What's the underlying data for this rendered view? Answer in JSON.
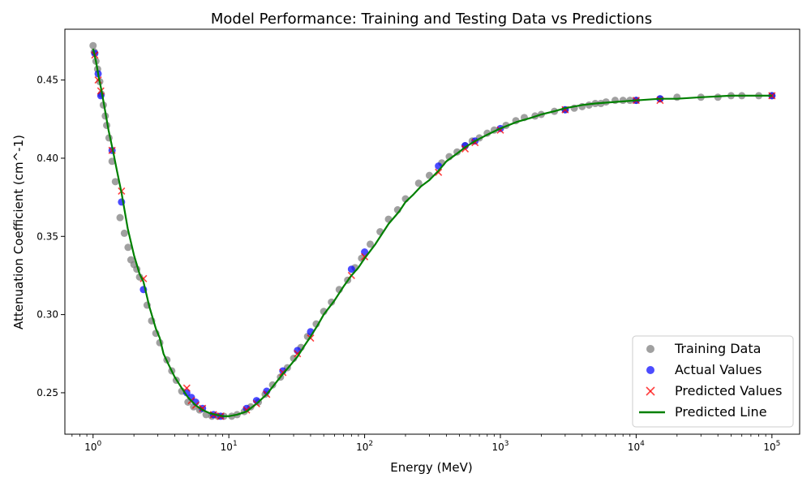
{
  "chart_data": {
    "type": "scatter",
    "title": "Model Performance: Training and Testing Data vs Predictions",
    "xlabel": "Energy (MeV)",
    "ylabel": "Attenuation Coefficient (cm^-1)",
    "xscale": "log",
    "xlim": [
      0.62,
      160000
    ],
    "ylim": [
      0.2235,
      0.4825
    ],
    "x_ticks": [
      {
        "value": 1,
        "base": "10",
        "exp": "0"
      },
      {
        "value": 10,
        "base": "10",
        "exp": "1"
      },
      {
        "value": 100,
        "base": "10",
        "exp": "2"
      },
      {
        "value": 1000,
        "base": "10",
        "exp": "3"
      },
      {
        "value": 10000,
        "base": "10",
        "exp": "4"
      },
      {
        "value": 100000,
        "base": "10",
        "exp": "5"
      }
    ],
    "y_ticks": [
      "0.25",
      "0.30",
      "0.35",
      "0.40",
      "0.45"
    ],
    "grid": false,
    "legend_position": "bottom-right",
    "colors": {
      "training": "#808080",
      "actual": "#0000ff",
      "predicted": "#ff0000",
      "line": "#008000"
    },
    "series": [
      {
        "name": "Training Data",
        "kind": "scatter-circle",
        "x": [
          1.0,
          1.02,
          1.05,
          1.08,
          1.12,
          1.15,
          1.19,
          1.23,
          1.26,
          1.31,
          1.38,
          1.46,
          1.58,
          1.7,
          1.81,
          1.9,
          2.0,
          2.1,
          2.2,
          2.5,
          2.7,
          2.9,
          3.1,
          3.5,
          3.8,
          4.1,
          4.5,
          5.0,
          5.5,
          6.1,
          6.8,
          7.5,
          8.3,
          9.2,
          10.5,
          11.5,
          13.0,
          14.5,
          16.5,
          18.5,
          21.0,
          24.0,
          27.0,
          30.0,
          34.0,
          38.0,
          44.0,
          50.0,
          57.0,
          65.0,
          75.0,
          85.0,
          95.0,
          110.0,
          130.0,
          150.0,
          175.0,
          200.0,
          250.0,
          300.0,
          370.0,
          420.0,
          480.0,
          550.0,
          620.0,
          700.0,
          800.0,
          900.0,
          1100.0,
          1300.0,
          1500.0,
          1800.0,
          2000.0,
          2500.0,
          3000.0,
          3500.0,
          4000.0,
          4500.0,
          5000.0,
          5500.0,
          6000.0,
          7000.0,
          8000.0,
          9000.0,
          10000.0,
          15000.0,
          20000.0,
          30000.0,
          40000.0,
          50000.0,
          60000.0,
          80000.0,
          100000.0
        ],
        "y": [
          0.472,
          0.468,
          0.462,
          0.457,
          0.449,
          0.441,
          0.434,
          0.427,
          0.421,
          0.413,
          0.398,
          0.385,
          0.362,
          0.352,
          0.343,
          0.335,
          0.332,
          0.329,
          0.324,
          0.306,
          0.296,
          0.288,
          0.282,
          0.271,
          0.264,
          0.258,
          0.251,
          0.244,
          0.241,
          0.239,
          0.236,
          0.235,
          0.235,
          0.235,
          0.235,
          0.236,
          0.238,
          0.241,
          0.244,
          0.249,
          0.255,
          0.26,
          0.266,
          0.272,
          0.279,
          0.286,
          0.294,
          0.302,
          0.308,
          0.316,
          0.322,
          0.33,
          0.336,
          0.345,
          0.353,
          0.361,
          0.367,
          0.374,
          0.384,
          0.389,
          0.397,
          0.401,
          0.404,
          0.408,
          0.411,
          0.413,
          0.416,
          0.418,
          0.421,
          0.424,
          0.426,
          0.427,
          0.428,
          0.43,
          0.431,
          0.432,
          0.433,
          0.434,
          0.435,
          0.435,
          0.436,
          0.437,
          0.437,
          0.437,
          0.437,
          0.438,
          0.439,
          0.439,
          0.439,
          0.44,
          0.44,
          0.44,
          0.44
        ]
      },
      {
        "name": "Actual Values",
        "kind": "scatter-circle",
        "x": [
          1.03,
          1.09,
          1.14,
          1.38,
          1.62,
          2.35,
          4.9,
          5.3,
          5.7,
          6.4,
          7.7,
          8.7,
          13.5,
          16.0,
          19.0,
          25.0,
          32.0,
          40.0,
          80.0,
          100.0,
          350.0,
          550.0,
          650.0,
          1000.0,
          3000.0,
          10000.0,
          15000.0,
          100000.0
        ],
        "y": [
          0.467,
          0.454,
          0.44,
          0.405,
          0.372,
          0.316,
          0.25,
          0.247,
          0.244,
          0.24,
          0.236,
          0.235,
          0.24,
          0.245,
          0.251,
          0.264,
          0.277,
          0.289,
          0.329,
          0.34,
          0.395,
          0.408,
          0.411,
          0.419,
          0.431,
          0.437,
          0.438,
          0.44
        ]
      },
      {
        "name": "Predicted Values",
        "kind": "scatter-x",
        "x": [
          1.03,
          1.09,
          1.14,
          1.38,
          1.62,
          2.35,
          4.9,
          5.3,
          5.7,
          6.4,
          7.7,
          8.7,
          13.5,
          16.0,
          19.0,
          25.0,
          32.0,
          40.0,
          80.0,
          100.0,
          350.0,
          550.0,
          650.0,
          1000.0,
          3000.0,
          10000.0,
          15000.0,
          100000.0
        ],
        "y": [
          0.466,
          0.45,
          0.443,
          0.405,
          0.379,
          0.323,
          0.253,
          0.245,
          0.242,
          0.24,
          0.236,
          0.235,
          0.239,
          0.243,
          0.249,
          0.263,
          0.275,
          0.285,
          0.325,
          0.337,
          0.391,
          0.406,
          0.41,
          0.418,
          0.431,
          0.437,
          0.437,
          0.44
        ]
      },
      {
        "name": "Predicted Line",
        "kind": "line",
        "x": [
          1.0,
          1.05,
          1.1,
          1.15,
          1.2,
          1.3,
          1.4,
          1.5,
          1.62,
          1.8,
          2.0,
          2.2,
          2.35,
          2.6,
          2.9,
          3.1,
          3.3,
          3.6,
          4.0,
          4.5,
          5.0,
          5.7,
          6.4,
          7.2,
          8.0,
          9.0,
          10.0,
          11.5,
          13.5,
          16.0,
          19.0,
          22.0,
          25.0,
          28.0,
          32.0,
          36.0,
          40.0,
          45.0,
          50.0,
          60.0,
          70.0,
          80.0,
          90.0,
          100.0,
          120.0,
          150.0,
          180.0,
          200.0,
          230.0,
          260.0,
          300.0,
          350.0,
          400.0,
          480.0,
          550.0,
          650.0,
          800.0,
          1000.0,
          1300.0,
          1700.0,
          2000.0,
          2500.0,
          3000.0,
          4000.0,
          5000.0,
          7000.0,
          10000.0,
          15000.0,
          20000.0,
          30000.0,
          50000.0,
          100000.0
        ],
        "y": [
          0.47,
          0.462,
          0.452,
          0.444,
          0.435,
          0.418,
          0.405,
          0.392,
          0.378,
          0.355,
          0.338,
          0.326,
          0.321,
          0.305,
          0.291,
          0.285,
          0.275,
          0.268,
          0.26,
          0.253,
          0.247,
          0.242,
          0.239,
          0.237,
          0.236,
          0.235,
          0.235,
          0.236,
          0.238,
          0.243,
          0.249,
          0.256,
          0.262,
          0.267,
          0.273,
          0.28,
          0.286,
          0.293,
          0.3,
          0.309,
          0.318,
          0.325,
          0.33,
          0.336,
          0.345,
          0.358,
          0.366,
          0.372,
          0.377,
          0.382,
          0.386,
          0.392,
          0.398,
          0.403,
          0.407,
          0.411,
          0.415,
          0.419,
          0.423,
          0.426,
          0.428,
          0.43,
          0.432,
          0.434,
          0.435,
          0.436,
          0.437,
          0.438,
          0.438,
          0.439,
          0.44,
          0.44
        ]
      }
    ]
  }
}
